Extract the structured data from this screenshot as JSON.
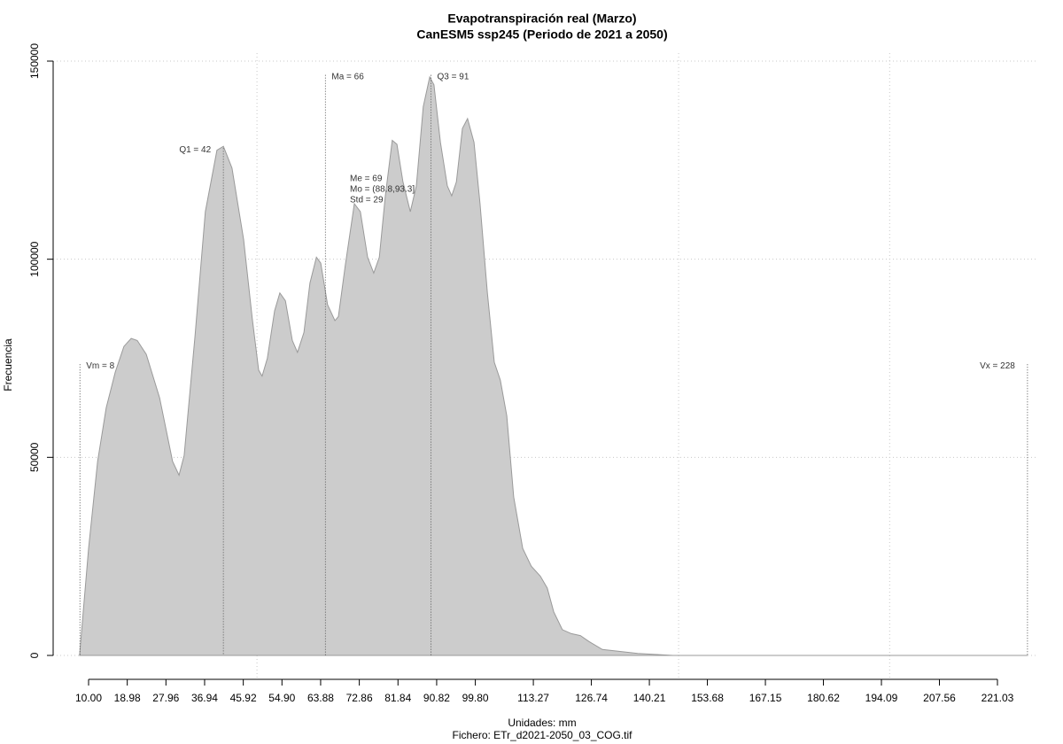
{
  "chart_data": {
    "type": "area",
    "title": "Evapotranspiración real (Marzo)",
    "subtitle": "CanESM5 ssp245 (Periodo de 2021 a 2050)",
    "xlabel": "Unidades: mm",
    "caption": "Fichero: ETr_d2021-2050_03_COG.tif",
    "ylabel": "Frecuencia",
    "color": "#cccccc",
    "line_color": "#9a9a9a",
    "grid": true,
    "xlim": [
      10,
      221.03
    ],
    "ylim": [
      0,
      150000
    ],
    "xticks": [
      {
        "value": 10,
        "label": "10.00"
      },
      18.98,
      27.96,
      36.94,
      45.92,
      {
        "value": 54.9,
        "label": "54.90"
      },
      63.88,
      72.86,
      81.84,
      90.82,
      {
        "value": 99.8,
        "label": "99.80"
      },
      113.27,
      126.74,
      140.21,
      153.68,
      167.15,
      180.62,
      194.09,
      207.56,
      221.03
    ],
    "xgrid": [
      49.1,
      147,
      196
    ],
    "yticks": [
      0,
      50000,
      100000,
      150000
    ],
    "x": [
      7.9,
      10.0,
      12.1,
      14.1,
      16.2,
      18.2,
      19.9,
      21.3,
      23.4,
      26.5,
      29.5,
      31.0,
      32.2,
      34.7,
      37.1,
      39.8,
      41.3,
      43.3,
      46.0,
      48.0,
      49.5,
      50.3,
      51.5,
      53.2,
      54.4,
      55.7,
      57.3,
      58.5,
      60.0,
      61.4,
      62.9,
      63.9,
      65.5,
      67.2,
      68.0,
      69.6,
      71.7,
      73.1,
      74.8,
      76.2,
      77.5,
      78.9,
      80.5,
      81.6,
      83.0,
      84.7,
      86.1,
      87.7,
      89.2,
      90.2,
      91.7,
      93.3,
      94.3,
      95.4,
      96.8,
      98.0,
      99.5,
      100.9,
      102.6,
      104.2,
      105.6,
      107.1,
      108.7,
      110.8,
      112.8,
      114.9,
      116.5,
      118.0,
      120.0,
      122.1,
      124.2,
      126.2,
      129.3,
      133.4,
      137.5,
      145.7,
      228
    ],
    "values": [
      0,
      27000,
      49000,
      62500,
      71500,
      78000,
      80000,
      79500,
      76000,
      65000,
      49000,
      45500,
      50500,
      80500,
      112000,
      127500,
      128500,
      123000,
      105000,
      85000,
      72000,
      70500,
      75000,
      87000,
      91500,
      89500,
      79500,
      76500,
      81500,
      94000,
      100500,
      99000,
      88500,
      84500,
      85500,
      98500,
      114000,
      112000,
      100500,
      96500,
      100500,
      116000,
      130000,
      129000,
      119500,
      112000,
      118500,
      138500,
      146000,
      144000,
      129500,
      118500,
      116000,
      119500,
      133000,
      135500,
      129500,
      114000,
      91500,
      74000,
      69500,
      60500,
      40000,
      27000,
      22500,
      20000,
      17000,
      11000,
      6500,
      5500,
      5000,
      3500,
      1500,
      1000,
      500,
      0,
      0
    ],
    "annotations": [
      {
        "text": "Vm = 8",
        "x": 8,
        "y": 73500,
        "side": "right"
      },
      {
        "text": "Q1 = 42",
        "x": 41.3,
        "y": 128000,
        "side": "left"
      },
      {
        "text": "Ma = 66",
        "x": 65,
        "y": 146500,
        "side": "right"
      },
      {
        "text": "Q3 = 91",
        "x": 89.5,
        "y": 146500,
        "side": "right"
      },
      {
        "text": "Vx = 228",
        "x": 228,
        "y": 73500,
        "side": "left"
      }
    ],
    "stats": [
      "Me = 69",
      "Mo = (88.8,93.3]",
      "Std = 29"
    ]
  }
}
